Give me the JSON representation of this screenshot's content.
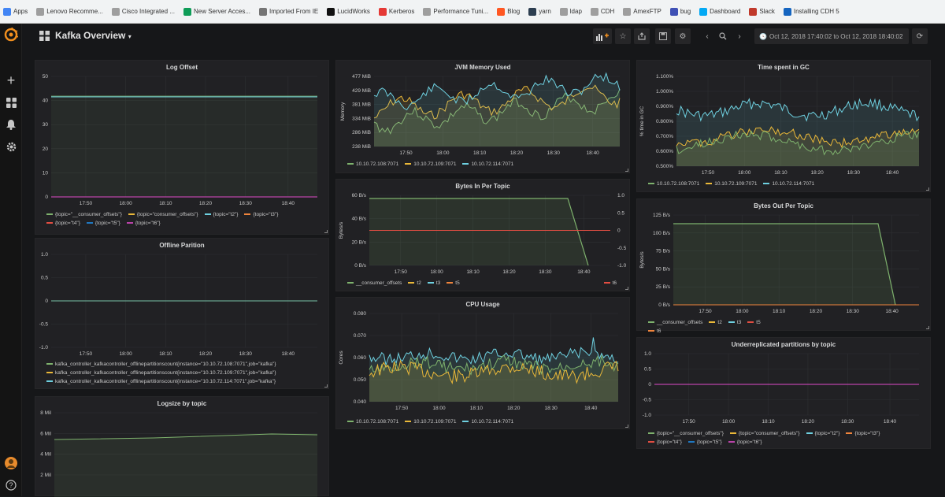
{
  "bookmarks": [
    {
      "label": "Apps",
      "color": "#4285f4",
      "icon": "apps-grid-icon"
    },
    {
      "label": "Lenovo Recomme...",
      "color": "#9e9e9e",
      "icon": "document-icon"
    },
    {
      "label": "Cisco Integrated ...",
      "color": "#9e9e9e",
      "icon": "document-icon"
    },
    {
      "label": "New Server Acces...",
      "color": "#0f9d58",
      "icon": "sheets-icon"
    },
    {
      "label": "Imported From IE",
      "color": "#757575",
      "icon": "folder-icon"
    },
    {
      "label": "LucidWorks",
      "color": "#111111",
      "icon": "lucidworks-icon"
    },
    {
      "label": "Kerberos",
      "color": "#e53935",
      "icon": "youtube-icon"
    },
    {
      "label": "Performance Tuni...",
      "color": "#9e9e9e",
      "icon": "document-icon"
    },
    {
      "label": "Blog",
      "color": "#ff5722",
      "icon": "blogger-icon"
    },
    {
      "label": "yarn",
      "color": "#2c3e50",
      "icon": "yarn-icon"
    },
    {
      "label": "ldap",
      "color": "#9e9e9e",
      "icon": "document-icon"
    },
    {
      "label": "CDH",
      "color": "#9e9e9e",
      "icon": "document-icon"
    },
    {
      "label": "AmexFTP",
      "color": "#9e9e9e",
      "icon": "document-icon"
    },
    {
      "label": "bug",
      "color": "#3f51b5",
      "icon": "image-icon"
    },
    {
      "label": "Dashboard",
      "color": "#03a9f4",
      "icon": "cloud-icon"
    },
    {
      "label": "Slack",
      "color": "#c0392b",
      "icon": "slack-icon"
    },
    {
      "label": "Installing CDH 5",
      "color": "#1565c0",
      "icon": "cloudera-icon"
    }
  ],
  "sidebar": {
    "logo": "grafana-logo-icon",
    "add": "+",
    "avatar": "avatar",
    "help": "?"
  },
  "topbar": {
    "title": "Kafka Overview",
    "time_range": "Oct 12, 2018 17:40:02 to Oct 12, 2018 18:40:02"
  },
  "colors": {
    "green": "#7eb26d",
    "yellow": "#eab839",
    "cyan": "#6ed0e0",
    "orange": "#ef843c",
    "red": "#e24d42",
    "blue": "#1f78c1",
    "purple": "#ba43a9",
    "grid": "#2f3033"
  },
  "panels": {
    "log_offset": {
      "title": "Log Offset",
      "yticks": [
        "50",
        "40",
        "30",
        "20",
        "10",
        "0"
      ],
      "xticks": [
        "17:50",
        "18:00",
        "18:10",
        "18:20",
        "18:30",
        "18:40"
      ],
      "legend": [
        [
          "{topic=\"__consumer_offsets\"}",
          "green"
        ],
        [
          "{topic=\"consumer_offsets\"}",
          "yellow"
        ],
        [
          "{topic=\"t2\"}",
          "cyan"
        ],
        [
          "{topic=\"t3\"}",
          "orange"
        ],
        [
          "{topic=\"t4\"}",
          "red"
        ],
        [
          "{topic=\"t5\"}",
          "blue"
        ],
        [
          "{topic=\"t6\"}",
          "purple"
        ]
      ]
    },
    "offline": {
      "title": "Offline Parition",
      "yticks": [
        "1.0",
        "0.5",
        "0",
        "-0.5",
        "-1.0"
      ],
      "xticks": [
        "17:50",
        "18:00",
        "18:10",
        "18:20",
        "18:30",
        "18:40"
      ],
      "legend": [
        [
          "kafka_controller_kafkacontroller_offlinepartitionscount{instance=\"10.10.72.108:7071\",job=\"kafka\"}",
          "green"
        ],
        [
          "kafka_controller_kafkacontroller_offlinepartitionscount{instance=\"10.10.72.109:7071\",job=\"kafka\"}",
          "yellow"
        ],
        [
          "kafka_controller_kafkacontroller_offlinepartitionscount{instance=\"10.10.72.114:7071\",job=\"kafka\"}",
          "cyan"
        ]
      ]
    },
    "logsize": {
      "title": "Logsize by topic",
      "yticks": [
        "8 Mil",
        "6 Mil",
        "4 Mil",
        "2 Mil"
      ]
    },
    "jvm": {
      "title": "JVM Memory Used",
      "ylabel": "Memory",
      "yticks": [
        "477 MiB",
        "429 MiB",
        "381 MiB",
        "334 MiB",
        "286 MiB",
        "238 MiB"
      ],
      "xticks": [
        "17:50",
        "18:00",
        "18:10",
        "18:20",
        "18:30",
        "18:40"
      ],
      "legend": [
        [
          "10.10.72.108:7071",
          "green"
        ],
        [
          "10.10.72.109:7071",
          "yellow"
        ],
        [
          "10.10.72.114:7071",
          "cyan"
        ]
      ]
    },
    "bytes_in": {
      "title": "Bytes In Per Topic",
      "ylabel": "Bytes/s",
      "yticks": [
        "60 B/s",
        "40 B/s",
        "20 B/s",
        "0 B/s"
      ],
      "y2ticks": [
        "1.0",
        "0.5",
        "0",
        "-0.5",
        "-1.0"
      ],
      "xticks": [
        "17:50",
        "18:00",
        "18:10",
        "18:20",
        "18:30",
        "18:40"
      ],
      "legend": [
        [
          "__consumer_offsets",
          "green"
        ],
        [
          "t2",
          "yellow"
        ],
        [
          "t3",
          "cyan"
        ],
        [
          "t5",
          "orange"
        ]
      ],
      "legend_right": [
        "t6",
        "red"
      ]
    },
    "cpu": {
      "title": "CPU Usage",
      "ylabel": "Cores",
      "yticks": [
        "0.080",
        "0.070",
        "0.060",
        "0.050",
        "0.040"
      ],
      "xticks": [
        "17:50",
        "18:00",
        "18:10",
        "18:20",
        "18:30",
        "18:40"
      ],
      "legend": [
        [
          "10.10.72.108:7071",
          "green"
        ],
        [
          "10.10.72.109:7071",
          "yellow"
        ],
        [
          "10.10.72.114:7071",
          "cyan"
        ]
      ]
    },
    "gc": {
      "title": "Time spent in GC",
      "ylabel": "% time in GC",
      "yticks": [
        "1.100%",
        "1.000%",
        "0.900%",
        "0.800%",
        "0.700%",
        "0.600%",
        "0.500%"
      ],
      "xticks": [
        "17:50",
        "18:00",
        "18:10",
        "18:20",
        "18:30",
        "18:40"
      ],
      "legend": [
        [
          "10.10.72.108:7071",
          "green"
        ],
        [
          "10.10.72.109:7071",
          "yellow"
        ],
        [
          "10.10.72.114:7071",
          "cyan"
        ]
      ]
    },
    "bytes_out": {
      "title": "Bytes Out Per Topic",
      "ylabel": "Bytes/s",
      "yticks": [
        "125 B/s",
        "100 B/s",
        "75 B/s",
        "50 B/s",
        "25 B/s",
        "0 B/s"
      ],
      "xticks": [
        "17:50",
        "18:00",
        "18:10",
        "18:20",
        "18:30",
        "18:40"
      ],
      "legend": [
        [
          "__consumer_offsets",
          "green"
        ],
        [
          "t2",
          "yellow"
        ],
        [
          "t3",
          "cyan"
        ],
        [
          "t5",
          "red"
        ],
        [
          "t6",
          "orange"
        ]
      ]
    },
    "underrep": {
      "title": "Underreplicated partitions by topic",
      "yticks": [
        "1.0",
        "0.5",
        "0",
        "-0.5",
        "-1.0"
      ],
      "xticks": [
        "17:50",
        "18:00",
        "18:10",
        "18:20",
        "18:30",
        "18:40"
      ],
      "legend": [
        [
          "{topic=\"__consumer_offsets\"}",
          "green"
        ],
        [
          "{topic=\"consumer_offsets\"}",
          "yellow"
        ],
        [
          "{topic=\"t2\"}",
          "cyan"
        ],
        [
          "{topic=\"t3\"}",
          "orange"
        ],
        [
          "{topic=\"t4\"}",
          "red"
        ],
        [
          "{topic=\"t5\"}",
          "blue"
        ],
        [
          "{topic=\"t6\"}",
          "purple"
        ]
      ]
    }
  }
}
